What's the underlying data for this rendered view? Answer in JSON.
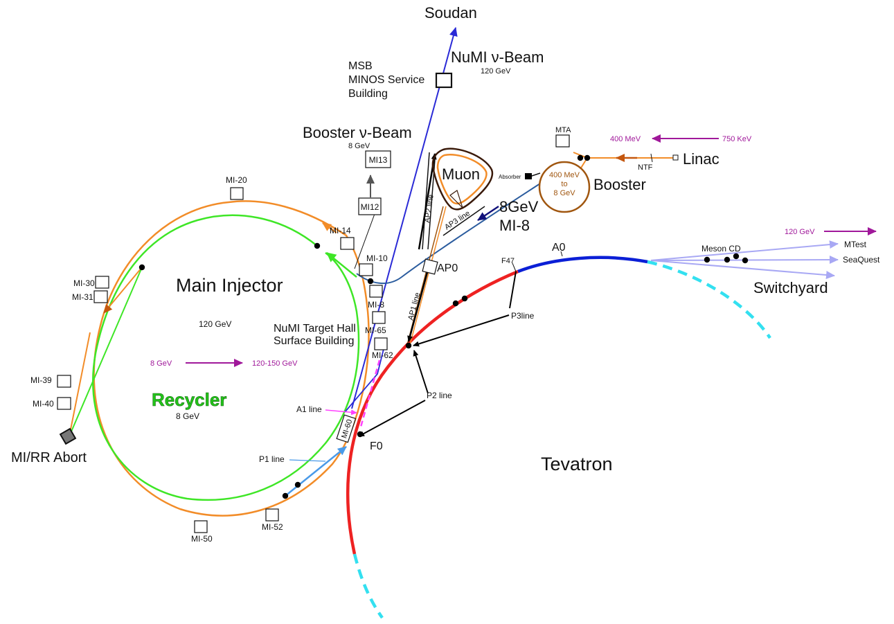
{
  "labels": {
    "soudan": "Soudan",
    "numi_beam": "NuMI ν-Beam",
    "numi_energy": "120 GeV",
    "msb1": "MSB",
    "msb2": "MINOS Service",
    "msb3": "Building",
    "booster_beam": "Booster ν-Beam",
    "booster_beam_energy": "8 GeV",
    "mi13": "MI13",
    "mi12": "MI12",
    "mta": "MTA",
    "e400mev": "400 MeV",
    "e750kev": "750 KeV",
    "linac": "Linac",
    "ntf": "NTF",
    "absorber": "Absorber",
    "muon": "Muon",
    "booster_ring1": "400 MeV",
    "booster_ring2": "to",
    "booster_ring3": "8 GeV",
    "booster": "Booster",
    "mi8_energy": "8GeV",
    "mi8": "MI-8",
    "ap2": "AP2 line",
    "ap3": "AP3 line",
    "ap1": "AP1 line",
    "ap0": "AP0",
    "mi20": "MI-20",
    "mi14": "MI-14",
    "mi10": "MI-10",
    "mi30": "MI-30",
    "mi31": "MI-31",
    "main_injector": "Main Injector",
    "mi_energy": "120 GeV",
    "mi8_box": "MI-8",
    "numi_target1": "NuMI Target Hall",
    "numi_target2": "Surface Building",
    "mi65": "MI-65",
    "mi62": "MI-62",
    "e8gev": "8 GeV",
    "e120_150": "120-150 GeV",
    "mi39": "MI-39",
    "mi40": "MI-40",
    "recycler": "Recycler",
    "recycler_energy": "8 GeV",
    "a1": "A1 line",
    "mi60": "MI-60",
    "f0": "F0",
    "p1": "P1 line",
    "abort": "MI/RR Abort",
    "mi50": "MI-50",
    "mi52": "MI-52",
    "p2": "P2 line",
    "p3": "P3line",
    "f47": "F47",
    "a0": "A0",
    "tevatron": "Tevatron",
    "sw_energy": "120 GeV",
    "meson": "Meson CD",
    "mtest": "MTest",
    "seaquest": "SeaQuest",
    "switchyard": "Switchyard"
  },
  "colors": {
    "main_injector": "#f28c28",
    "recycler": "#3ee626",
    "tevatron_red": "#ee2222",
    "tevatron_blue": "#0b1fd6",
    "tevatron_dashed": "#33e0f0",
    "numi_line": "#2a2ad6",
    "mi8_line": "#2b5c9e",
    "p1_line": "#4a9ae8",
    "a1_line": "#ff40ff",
    "switchyard_lines": "#a8a8f4",
    "magenta_arrow": "#a0189a",
    "booster_ring": "#a0560f",
    "recycler_label": "#22c41a"
  }
}
